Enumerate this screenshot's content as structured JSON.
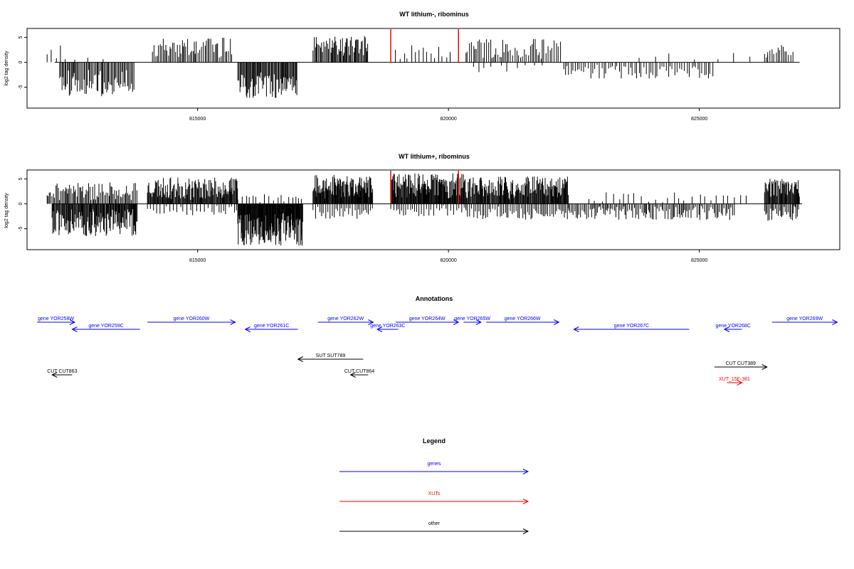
{
  "chart_data": [
    {
      "type": "bar",
      "title": "WT lithium-, ribominus",
      "ylabel": "log2 tag density",
      "xlabel": "",
      "xlim": [
        811600,
        827800
      ],
      "ylim": [
        -9.2,
        6.8
      ],
      "x_ticks": [
        815000,
        820000,
        825000
      ],
      "x_tick_labels": [
        "815000",
        "820000",
        "825000"
      ],
      "y_ticks": [
        5,
        0,
        -5
      ],
      "y_tick_labels": [
        "5",
        "0",
        "-5"
      ],
      "baseline": [
        812150,
        827000
      ],
      "highlights": [
        818850,
        820200
      ],
      "segments": [
        {
          "start": 812000,
          "end": 812450,
          "sign": 1,
          "min": 0.5,
          "max": 4.0,
          "step": 90,
          "seed": 1
        },
        {
          "start": 812250,
          "end": 813750,
          "sign": -1,
          "min": 1.5,
          "max": 6.8,
          "step": 22,
          "seed": 2
        },
        {
          "start": 812550,
          "end": 813300,
          "sign": 1,
          "min": 0.3,
          "max": 1.0,
          "step": 250,
          "seed": 3
        },
        {
          "start": 814100,
          "end": 815700,
          "sign": 1,
          "min": 0.8,
          "max": 5.0,
          "step": 28,
          "seed": 4
        },
        {
          "start": 815800,
          "end": 817000,
          "sign": -1,
          "min": 2.0,
          "max": 7.2,
          "step": 18,
          "seed": 5
        },
        {
          "start": 817300,
          "end": 818400,
          "sign": 1,
          "min": 1.0,
          "max": 5.3,
          "step": 20,
          "seed": 6
        },
        {
          "start": 818850,
          "end": 820050,
          "sign": 1,
          "min": 0.4,
          "max": 3.5,
          "step": 70,
          "seed": 7
        },
        {
          "start": 820350,
          "end": 822250,
          "sign": 1,
          "min": 0.5,
          "max": 4.8,
          "step": 35,
          "seed": 8
        },
        {
          "start": 820500,
          "end": 822000,
          "sign": -1,
          "min": 0.4,
          "max": 2.0,
          "step": 160,
          "seed": 9
        },
        {
          "start": 822300,
          "end": 825300,
          "sign": -1,
          "min": 0.5,
          "max": 3.3,
          "step": 45,
          "seed": 10
        },
        {
          "start": 823800,
          "end": 826600,
          "sign": 1,
          "min": 0.3,
          "max": 2.2,
          "step": 400,
          "seed": 11
        },
        {
          "start": 826300,
          "end": 826900,
          "sign": 1,
          "min": 0.8,
          "max": 3.5,
          "step": 40,
          "seed": 12
        }
      ]
    },
    {
      "type": "bar",
      "title": "WT lithium+, ribominus",
      "ylabel": "log2 tag density",
      "xlabel": "",
      "xlim": [
        811600,
        827800
      ],
      "ylim": [
        -9.2,
        6.8
      ],
      "x_ticks": [
        815000,
        820000,
        825000
      ],
      "x_tick_labels": [
        "815000",
        "820000",
        "825000"
      ],
      "y_ticks": [
        5,
        0,
        -5
      ],
      "y_tick_labels": [
        "5",
        "0",
        "-5"
      ],
      "baseline": [
        812100,
        827050
      ],
      "highlights": [
        818850,
        820200
      ],
      "segments": [
        {
          "start": 812000,
          "end": 813800,
          "sign": 1,
          "min": 0.5,
          "max": 4.3,
          "step": 25,
          "seed": 21
        },
        {
          "start": 812100,
          "end": 813800,
          "sign": -1,
          "min": 1.0,
          "max": 6.5,
          "step": 14,
          "seed": 22
        },
        {
          "start": 814000,
          "end": 815800,
          "sign": 1,
          "min": 0.8,
          "max": 5.3,
          "step": 14,
          "seed": 23
        },
        {
          "start": 814000,
          "end": 815800,
          "sign": -1,
          "min": 0.3,
          "max": 2.5,
          "step": 60,
          "seed": 24
        },
        {
          "start": 815800,
          "end": 817100,
          "sign": -1,
          "min": 1.8,
          "max": 8.5,
          "step": 10,
          "seed": 25
        },
        {
          "start": 815800,
          "end": 817100,
          "sign": 1,
          "min": 0.3,
          "max": 2.0,
          "step": 80,
          "seed": 26
        },
        {
          "start": 817300,
          "end": 818500,
          "sign": 1,
          "min": 1.0,
          "max": 5.8,
          "step": 12,
          "seed": 27
        },
        {
          "start": 817300,
          "end": 818500,
          "sign": -1,
          "min": 0.4,
          "max": 3.0,
          "step": 40,
          "seed": 28
        },
        {
          "start": 818850,
          "end": 820350,
          "sign": 1,
          "min": 1.0,
          "max": 6.2,
          "step": 12,
          "seed": 29
        },
        {
          "start": 818850,
          "end": 820350,
          "sign": -1,
          "min": 0.3,
          "max": 2.5,
          "step": 45,
          "seed": 30
        },
        {
          "start": 820350,
          "end": 822400,
          "sign": 1,
          "min": 0.8,
          "max": 5.5,
          "step": 14,
          "seed": 31
        },
        {
          "start": 820350,
          "end": 822400,
          "sign": -1,
          "min": 0.4,
          "max": 3.2,
          "step": 35,
          "seed": 32
        },
        {
          "start": 822400,
          "end": 825700,
          "sign": -1,
          "min": 0.4,
          "max": 3.3,
          "step": 28,
          "seed": 33
        },
        {
          "start": 822800,
          "end": 826000,
          "sign": 1,
          "min": 0.3,
          "max": 2.3,
          "step": 120,
          "seed": 34
        },
        {
          "start": 826300,
          "end": 827000,
          "sign": 1,
          "min": 1.0,
          "max": 5.0,
          "step": 14,
          "seed": 35
        },
        {
          "start": 826300,
          "end": 827000,
          "sign": -1,
          "min": 0.3,
          "max": 3.8,
          "step": 25,
          "seed": 36
        }
      ]
    }
  ],
  "annotations": {
    "title": "Annotations",
    "xlim": [
      811600,
      827800
    ],
    "features": [
      {
        "label": "gene YOR258W",
        "start": 811800,
        "end": 812550,
        "strand": "+",
        "row": 0,
        "kind": "gene"
      },
      {
        "label": "gene YOR259C",
        "start": 812500,
        "end": 813850,
        "strand": "-",
        "row": 1,
        "kind": "gene"
      },
      {
        "label": "gene YOR260W",
        "start": 814000,
        "end": 815750,
        "strand": "+",
        "row": 0,
        "kind": "gene"
      },
      {
        "label": "gene YOR261C",
        "start": 815950,
        "end": 817000,
        "strand": "-",
        "row": 1,
        "kind": "gene"
      },
      {
        "label": "gene YOR262W",
        "start": 817400,
        "end": 818500,
        "strand": "+",
        "row": 0,
        "kind": "gene"
      },
      {
        "label": "gene YOR263C",
        "start": 818580,
        "end": 819000,
        "strand": "-",
        "row": 1,
        "kind": "gene"
      },
      {
        "label": "gene YOR264W",
        "start": 818950,
        "end": 820200,
        "strand": "+",
        "row": 0,
        "kind": "gene"
      },
      {
        "label": "gene YOR265W",
        "start": 820300,
        "end": 820650,
        "strand": "+",
        "row": 0,
        "kind": "gene"
      },
      {
        "label": "gene YOR266W",
        "start": 820750,
        "end": 822200,
        "strand": "+",
        "row": 0,
        "kind": "gene"
      },
      {
        "label": "gene YOR267C",
        "start": 822500,
        "end": 824800,
        "strand": "-",
        "row": 1,
        "kind": "gene"
      },
      {
        "label": "gene YOR268C",
        "start": 825500,
        "end": 825850,
        "strand": "-",
        "row": 1,
        "kind": "gene"
      },
      {
        "label": "gene YOR269W",
        "start": 826450,
        "end": 827750,
        "strand": "+",
        "row": 0,
        "kind": "gene"
      },
      {
        "label": "SUT SUT789",
        "start": 817000,
        "end": 818300,
        "strand": "-",
        "row": 2,
        "kind": "other"
      },
      {
        "label": "CUT CUT863",
        "start": 812100,
        "end": 812500,
        "strand": "-",
        "row": 3,
        "kind": "other"
      },
      {
        "label": "CUT CUT864",
        "start": 818050,
        "end": 818400,
        "strand": "-",
        "row": 3,
        "kind": "other"
      },
      {
        "label": "CUT CUT389",
        "start": 825300,
        "end": 826350,
        "strand": "+",
        "row": 4,
        "kind": "other"
      },
      {
        "label": "XUT_15F-381",
        "start": 825550,
        "end": 825850,
        "strand": "+",
        "row": 5,
        "kind": "xut"
      }
    ]
  },
  "legend": {
    "title": "Legend",
    "items": [
      {
        "label": "genes",
        "color": "#0000ff"
      },
      {
        "label": "XUTs",
        "color": "#ff0000"
      },
      {
        "label": "other",
        "color": "#000000"
      }
    ]
  },
  "colors": {
    "gene": "#0000ff",
    "xut": "#ff0000",
    "other": "#000000",
    "highlight": "#ff0000",
    "bars": "#000000"
  }
}
